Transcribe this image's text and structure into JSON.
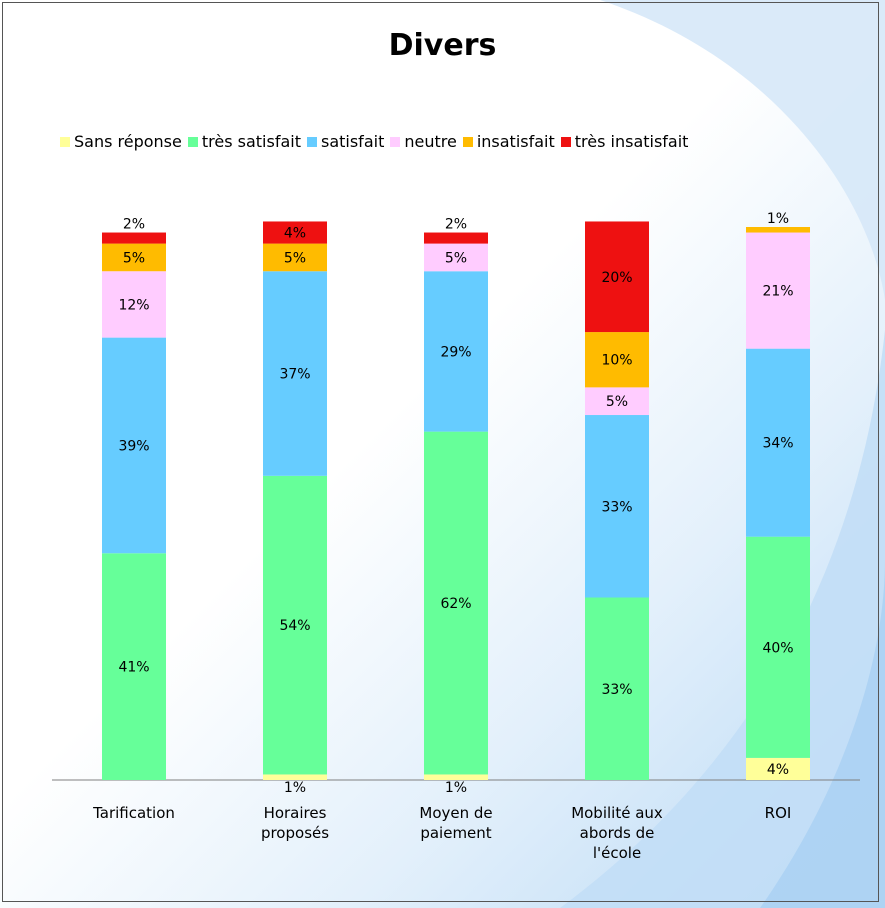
{
  "chart_data": {
    "type": "bar",
    "stacked": true,
    "title": "Divers",
    "xlabel": "",
    "ylabel": "",
    "ylim": [
      0,
      100
    ],
    "grid": false,
    "legend_position": "top",
    "categories": [
      [
        "Tarification"
      ],
      [
        "Horaires",
        "proposés"
      ],
      [
        "Moyen de",
        "paiement"
      ],
      [
        "Mobilité aux",
        "abords de",
        "l'école"
      ],
      [
        "ROI"
      ]
    ],
    "series": [
      {
        "name": "Sans réponse",
        "color": "#ffff99",
        "values": [
          0,
          1,
          1,
          0,
          4
        ]
      },
      {
        "name": "très satisfait",
        "color": "#66ff99",
        "values": [
          41,
          54,
          62,
          33,
          40
        ]
      },
      {
        "name": "satisfait",
        "color": "#66ccff",
        "values": [
          39,
          37,
          29,
          33,
          34
        ]
      },
      {
        "name": "neutre",
        "color": "#ffccff",
        "values": [
          12,
          0,
          5,
          5,
          21
        ]
      },
      {
        "name": "insatisfait",
        "color": "#ffbb00",
        "values": [
          5,
          5,
          0,
          10,
          1
        ]
      },
      {
        "name": "très insatisfait",
        "color": "#ee1111",
        "values": [
          2,
          4,
          2,
          20,
          0
        ]
      }
    ]
  }
}
